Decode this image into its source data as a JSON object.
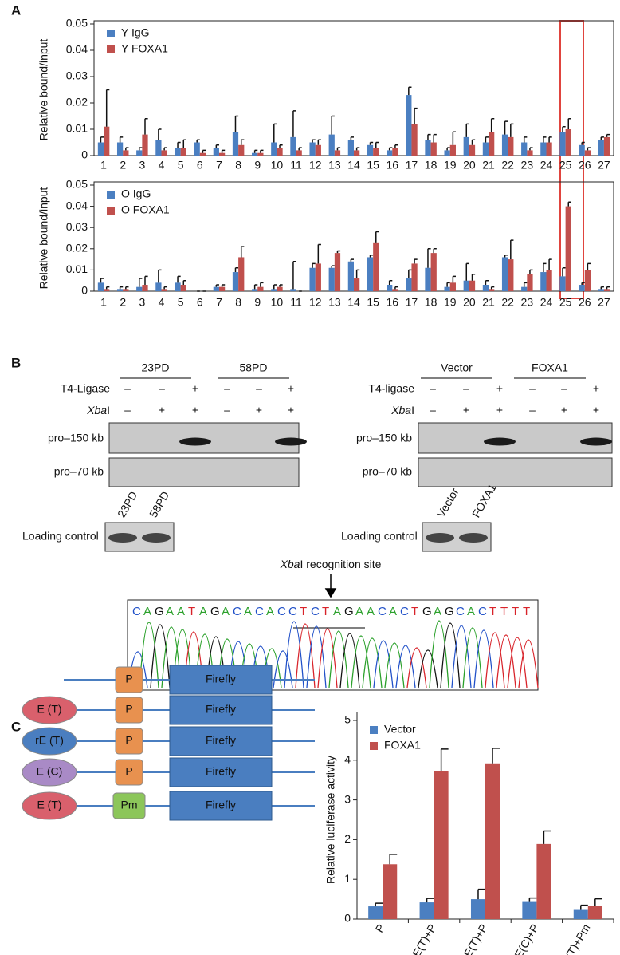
{
  "chart_data": [
    {
      "type": "bar",
      "panel": "A",
      "ylabel": "Relative bound/input",
      "frame": true,
      "legend": "top-left",
      "categories": [
        "1",
        "2",
        "3",
        "4",
        "5",
        "6",
        "7",
        "8",
        "9",
        "10",
        "11",
        "12",
        "13",
        "14",
        "15",
        "16",
        "17",
        "18",
        "19",
        "20",
        "21",
        "22",
        "23",
        "24",
        "25",
        "26",
        "27"
      ],
      "ylim": [
        0,
        0.05
      ],
      "yticks": [
        0,
        0.01,
        0.02,
        0.03,
        0.04,
        0.05
      ],
      "series": [
        {
          "name": "Y IgG",
          "color": "#4b7fc1",
          "values": [
            0.005,
            0.005,
            0.002,
            0.006,
            0.003,
            0.005,
            0.003,
            0.009,
            0.001,
            0.005,
            0.007,
            0.005,
            0.008,
            0.006,
            0.004,
            0.002,
            0.023,
            0.006,
            0.002,
            0.007,
            0.005,
            0.008,
            0.005,
            0.005,
            0.009,
            0.004,
            0.006
          ],
          "errors": [
            0.002,
            0.002,
            0.001,
            0.004,
            0.002,
            0.001,
            0.001,
            0.006,
            0.001,
            0.007,
            0.01,
            0.001,
            0.007,
            0.001,
            0.001,
            0.001,
            0.003,
            0.002,
            0.001,
            0.005,
            0.002,
            0.005,
            0.002,
            0.002,
            0.002,
            0.001,
            0.001
          ]
        },
        {
          "name": "Y FOXA1",
          "color": "#c0504d",
          "values": [
            0.011,
            0.002,
            0.008,
            0.002,
            0.003,
            0.001,
            0.001,
            0.004,
            0.001,
            0.003,
            0.002,
            0.004,
            0.002,
            0.002,
            0.003,
            0.003,
            0.012,
            0.005,
            0.004,
            0.004,
            0.009,
            0.007,
            0.002,
            0.005,
            0.01,
            0.002,
            0.007
          ],
          "errors": [
            0.014,
            0.001,
            0.006,
            0.001,
            0.003,
            0.001,
            0.001,
            0.002,
            0.001,
            0.001,
            0.001,
            0.002,
            0.001,
            0.001,
            0.002,
            0.001,
            0.006,
            0.003,
            0.005,
            0.002,
            0.005,
            0.005,
            0.001,
            0.002,
            0.004,
            0.001,
            0.001
          ]
        }
      ]
    },
    {
      "type": "bar",
      "ylabel": "Relative bound/input",
      "frame": true,
      "legend": "top-left",
      "categories": [
        "1",
        "2",
        "3",
        "4",
        "5",
        "6",
        "7",
        "8",
        "9",
        "10",
        "11",
        "12",
        "13",
        "14",
        "15",
        "16",
        "17",
        "18",
        "19",
        "20",
        "21",
        "22",
        "23",
        "24",
        "25",
        "26",
        "27"
      ],
      "ylim": [
        0,
        0.05
      ],
      "yticks": [
        0,
        0.01,
        0.02,
        0.03,
        0.04,
        0.05
      ],
      "series": [
        {
          "name": "O IgG",
          "color": "#4b7fc1",
          "values": [
            0.004,
            0.001,
            0.002,
            0.004,
            0.004,
            0,
            0.002,
            0.009,
            0.001,
            0.001,
            0.001,
            0.011,
            0.011,
            0.014,
            0.016,
            0.003,
            0.006,
            0.011,
            0.002,
            0.005,
            0.003,
            0.016,
            0.002,
            0.009,
            0.007,
            0.003,
            0.001
          ],
          "errors": [
            0.002,
            0.001,
            0.004,
            0.006,
            0.003,
            0,
            0.001,
            0.002,
            0.002,
            0.002,
            0.013,
            0.002,
            0.001,
            0.001,
            0.001,
            0.002,
            0.004,
            0.009,
            0.002,
            0.008,
            0.002,
            0.001,
            0.002,
            0.004,
            0.004,
            0.001,
            0.001
          ]
        },
        {
          "name": "O FOXA1",
          "color": "#c0504d",
          "values": [
            0.001,
            0.001,
            0.003,
            0.001,
            0.003,
            0,
            0.002,
            0.016,
            0.002,
            0.002,
            0,
            0.013,
            0.018,
            0.006,
            0.023,
            0.001,
            0.013,
            0.018,
            0.004,
            0.005,
            0.001,
            0.015,
            0.008,
            0.01,
            0.04,
            0.01,
            0.001
          ],
          "errors": [
            0.001,
            0.001,
            0.004,
            0.001,
            0.002,
            0,
            0.001,
            0.005,
            0.002,
            0.001,
            0,
            0.009,
            0.001,
            0.004,
            0.005,
            0.001,
            0.002,
            0.002,
            0.003,
            0.003,
            0.001,
            0.009,
            0.002,
            0.005,
            0.002,
            0.003,
            0.001
          ]
        }
      ]
    },
    {
      "type": "bar",
      "panel": "C",
      "ylabel": "Relative luciferase activity",
      "frame": false,
      "legend": "top-left",
      "categories": [
        "P",
        "E(T)+P",
        "rE(T)+P",
        "E(C)+P",
        "E(T)+Pm"
      ],
      "ylim": [
        0,
        5
      ],
      "yticks": [
        0,
        1,
        2,
        3,
        4,
        5
      ],
      "series": [
        {
          "name": "Vector",
          "color": "#4b7fc1",
          "values": [
            0.32,
            0.42,
            0.5,
            0.45,
            0.25
          ],
          "errors": [
            0.08,
            0.1,
            0.25,
            0.08,
            0.1
          ]
        },
        {
          "name": "FOXA1",
          "color": "#c0504d",
          "values": [
            1.38,
            3.73,
            3.92,
            1.89,
            0.33
          ],
          "errors": [
            0.25,
            0.55,
            0.38,
            0.33,
            0.18
          ]
        }
      ]
    }
  ],
  "panel_b": {
    "label": "B",
    "left": {
      "groups": [
        "23PD",
        "58PD"
      ],
      "ligase": "T4-Ligase",
      "ligase_signs": [
        "–",
        "–",
        "+",
        "–",
        "–",
        "+"
      ],
      "xba": [
        "Xba",
        "I"
      ],
      "xba_signs": [
        "–",
        "+",
        "+",
        "–",
        "+",
        "+"
      ],
      "bands": [
        "pro–150 kb",
        "pro–70 kb"
      ],
      "lanes": [
        "23PD",
        "58PD"
      ],
      "loading": "Loading control"
    },
    "right": {
      "groups": [
        "Vector",
        "FOXA1"
      ],
      "ligase": "T4-ligase",
      "ligase_signs": [
        "–",
        "–",
        "+",
        "–",
        "–",
        "+"
      ],
      "xba": [
        "Xba",
        "I"
      ],
      "xba_signs": [
        "–",
        "+",
        "+",
        "–",
        "+",
        "+"
      ],
      "bands": [
        "pro–150 kb",
        "pro–70 kb"
      ],
      "lanes": [
        "Vector",
        "FOXA1"
      ],
      "loading": "Loading control"
    },
    "site": [
      "Xba",
      "I recognition site"
    ],
    "sequence": "CAGAATAGACACACCTCTAGAACACTGAGCACTTTT"
  },
  "panel_c_diagram": {
    "rows": [
      {
        "promoter": "P",
        "reporter": "Firefly"
      },
      {
        "enhancer": "E (T)",
        "promoter": "P",
        "reporter": "Firefly"
      },
      {
        "enhancer": "rE (T)",
        "promoter": "P",
        "reporter": "Firefly"
      },
      {
        "enhancer": "E (C)",
        "promoter": "P",
        "reporter": "Firefly"
      },
      {
        "enhancer": "E (T)",
        "promoter": "Pm",
        "reporter": "Firefly"
      }
    ]
  }
}
